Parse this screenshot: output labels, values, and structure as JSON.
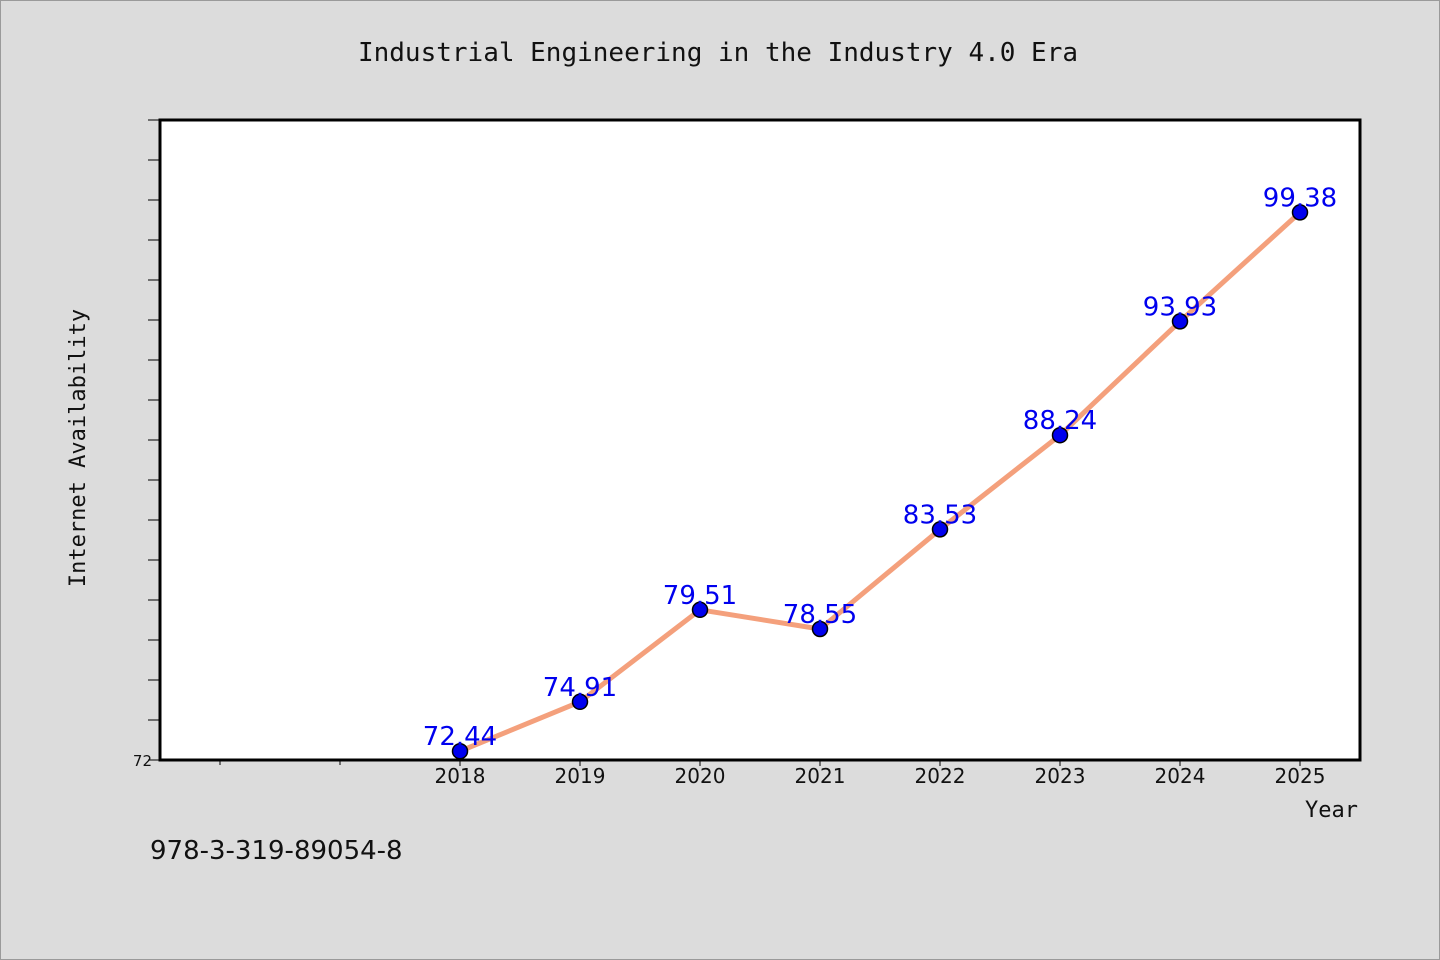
{
  "chart_data": {
    "type": "line",
    "title": "Industrial Engineering in the Industry 4.0 Era",
    "xlabel": "Year",
    "ylabel": "Internet Availability",
    "categories": [
      "2018",
      "2019",
      "2020",
      "2021",
      "2022",
      "2023",
      "2024",
      "2025"
    ],
    "series": [
      {
        "values": [
          72.44,
          74.91,
          79.51,
          78.55,
          83.53,
          88.24,
          93.93,
          99.38
        ],
        "data_labels": [
          "72.44",
          "74.91",
          "79.51",
          "78.55",
          "83.53",
          "88.24",
          "93.93",
          "99.38"
        ],
        "line_color": "#f4a07c",
        "marker_color": "#0000ee",
        "label_color": "#0000ee"
      }
    ],
    "y_tick_label": "72",
    "ylim": [
      72,
      104
    ],
    "grid": false,
    "legend": "none"
  },
  "footer": {
    "isbn": "978-3-319-89054-8"
  },
  "colors": {
    "background": "#dcdcdc",
    "plot_area": "#ffffff",
    "axis": "#000000"
  }
}
